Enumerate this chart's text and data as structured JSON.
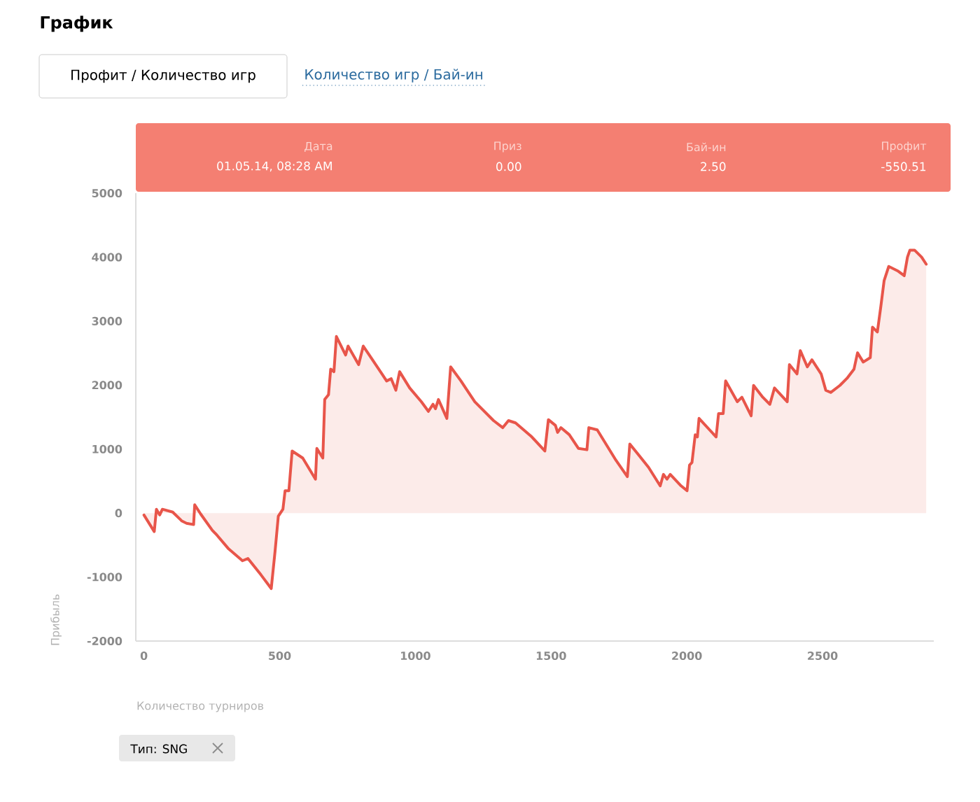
{
  "chart_data": {
    "type": "area",
    "title": "График",
    "xlabel": "Количество турниров",
    "ylabel": "Прибыль",
    "annotations": [
      "Профит / Количество игр",
      "Количество игр / Бай-ин",
      "Дата",
      "01.05.14, 08:28 AM",
      "Приз",
      "0.00",
      "Бай-ин",
      "2.50",
      "Профит",
      "-550.51",
      "Тип: SNG"
    ],
    "xlim": [
      -30,
      2910
    ],
    "ylim": [
      -2000,
      5000
    ],
    "xticks": [
      0,
      500,
      1000,
      1500,
      2000,
      2500
    ],
    "yticks": [
      -2000,
      -1000,
      0,
      1000,
      2000,
      3000,
      4000,
      5000
    ],
    "grid": false,
    "marker": "none",
    "line_style": "solid",
    "series": [
      {
        "color": "#e8554a",
        "x": [
          0,
          38,
          46,
          58,
          68,
          106,
          140,
          157,
          183,
          187,
          209,
          252,
          269,
          312,
          363,
          383,
          431,
          469,
          483,
          495,
          512,
          520,
          534,
          546,
          585,
          632,
          637,
          659,
          666,
          680,
          688,
          700,
          709,
          743,
          752,
          791,
          808,
          877,
          894,
          911,
          928,
          942,
          979,
          1022,
          1048,
          1065,
          1074,
          1085,
          1116,
          1130,
          1168,
          1185,
          1219,
          1288,
          1322,
          1343,
          1369,
          1429,
          1477,
          1490,
          1516,
          1524,
          1536,
          1567,
          1601,
          1632,
          1639,
          1670,
          1739,
          1781,
          1790,
          1824,
          1859,
          1902,
          1914,
          1927,
          1939,
          1979,
          2001,
          2010,
          2019,
          2031,
          2039,
          2045,
          2108,
          2117,
          2134,
          2143,
          2186,
          2203,
          2237,
          2246,
          2280,
          2306,
          2323,
          2370,
          2378,
          2406,
          2418,
          2444,
          2461,
          2495,
          2512,
          2530,
          2564,
          2590,
          2616,
          2629,
          2650,
          2676,
          2684,
          2702,
          2715,
          2727,
          2744,
          2779,
          2801,
          2813,
          2822,
          2839,
          2865,
          2882
        ],
        "values": [
          -30,
          -290,
          60,
          -30,
          60,
          15,
          -125,
          -160,
          -180,
          130,
          -15,
          -270,
          -345,
          -560,
          -745,
          -710,
          -965,
          -1180,
          -600,
          -50,
          60,
          350,
          350,
          970,
          860,
          530,
          1010,
          860,
          1775,
          1850,
          2250,
          2210,
          2760,
          2470,
          2610,
          2320,
          2610,
          2175,
          2065,
          2100,
          1920,
          2210,
          1955,
          1740,
          1590,
          1700,
          1630,
          1775,
          1480,
          2285,
          2065,
          1955,
          1740,
          1445,
          1335,
          1445,
          1410,
          1190,
          970,
          1460,
          1370,
          1260,
          1335,
          1225,
          1010,
          990,
          1335,
          1300,
          825,
          570,
          1080,
          900,
          715,
          425,
          605,
          530,
          605,
          425,
          350,
          750,
          790,
          1225,
          1190,
          1480,
          1190,
          1555,
          1555,
          2065,
          1740,
          1810,
          1520,
          1995,
          1810,
          1700,
          1955,
          1740,
          2320,
          2175,
          2540,
          2285,
          2395,
          2175,
          1920,
          1885,
          1995,
          2105,
          2250,
          2505,
          2360,
          2430,
          2905,
          2830,
          3235,
          3635,
          3855,
          3780,
          3710,
          4000,
          4110,
          4110,
          4000,
          3890
        ]
      }
    ]
  }
}
